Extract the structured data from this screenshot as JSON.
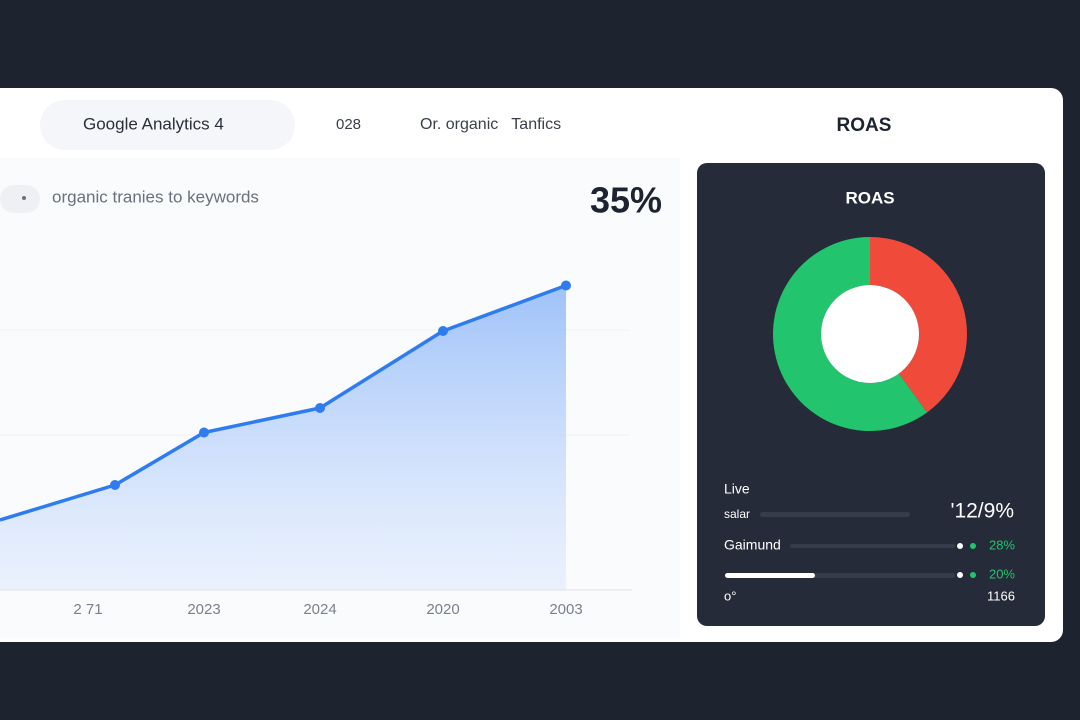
{
  "header": {
    "tab": "Google Analytics 4",
    "code": "028",
    "section": "Or. organic   Tanfics",
    "right_title": "ROAS"
  },
  "line_panel": {
    "subtitle": "organic tranies to keywords",
    "headline": "35%"
  },
  "roas_panel": {
    "title": "ROAS",
    "rows": [
      {
        "label": "Live"
      },
      {
        "label": "salar",
        "value": "'12/9%"
      },
      {
        "label": "Gaimund",
        "value": "28%"
      },
      {
        "value": "20%"
      },
      {
        "label": "o°",
        "value": "1166"
      }
    ]
  },
  "chart_data": [
    {
      "type": "area",
      "categories": [
        null,
        "2 71",
        "2023",
        "2024",
        "2020",
        "2003"
      ],
      "values": [
        20,
        30,
        45,
        52,
        74,
        87
      ],
      "ylim": [
        0,
        100
      ],
      "color": "#2f7cf0"
    },
    {
      "type": "donut",
      "values": [
        40,
        60
      ],
      "colors": [
        "#f04a3a",
        "#22c46e"
      ]
    }
  ]
}
